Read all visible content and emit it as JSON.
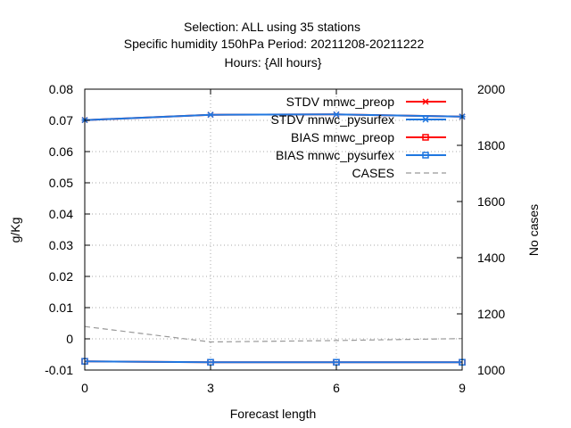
{
  "chart_data": {
    "type": "line",
    "title_lines": [
      "Selection: ALL using    35 stations",
      "Specific humidity 150hPa   Period: 20211208-20211222",
      "Hours: {All hours}"
    ],
    "xlabel": "Forecast length",
    "ylabel": "g/Kg",
    "y2label": "No cases",
    "xlim": [
      0,
      9
    ],
    "ylim": [
      -0.01,
      0.08
    ],
    "y2lim": [
      1000,
      2000
    ],
    "x_ticks": [
      "0",
      "3",
      "6",
      "9"
    ],
    "y_ticks": [
      "-0.01",
      "0",
      "0.01",
      "0.02",
      "0.03",
      "0.04",
      "0.05",
      "0.06",
      "0.07",
      "0.08"
    ],
    "y2_ticks": [
      "1000",
      "1200",
      "1400",
      "1600",
      "1800",
      "2000"
    ],
    "grid": true,
    "legend_position": "top-right",
    "series": [
      {
        "name": "STDV mnwc_preop",
        "axis": "y",
        "color": "#ff0000",
        "marker": "x",
        "x": [
          0,
          3,
          6,
          9
        ],
        "y": [
          0.0701,
          0.0718,
          0.0719,
          0.0712
        ]
      },
      {
        "name": "STDV mnwc_pysurfex",
        "axis": "y",
        "color": "#1f77e0",
        "marker": "x",
        "x": [
          0,
          3,
          6,
          9
        ],
        "y": [
          0.0701,
          0.0718,
          0.0719,
          0.0712
        ]
      },
      {
        "name": "BIAS mnwc_preop",
        "axis": "y",
        "color": "#ff0000",
        "marker": "square",
        "x": [
          0,
          3,
          6,
          9
        ],
        "y": [
          -0.0072,
          -0.0075,
          -0.0075,
          -0.0075
        ]
      },
      {
        "name": "BIAS mnwc_pysurfex",
        "axis": "y",
        "color": "#1f77e0",
        "marker": "square",
        "x": [
          0,
          3,
          6,
          9
        ],
        "y": [
          -0.0072,
          -0.0075,
          -0.0075,
          -0.0075
        ]
      },
      {
        "name": "CASES",
        "axis": "y2",
        "color": "#999999",
        "marker": "none",
        "dashed": true,
        "x": [
          0,
          3,
          6,
          9
        ],
        "y": [
          1155,
          1100,
          1105,
          1112
        ]
      }
    ]
  }
}
